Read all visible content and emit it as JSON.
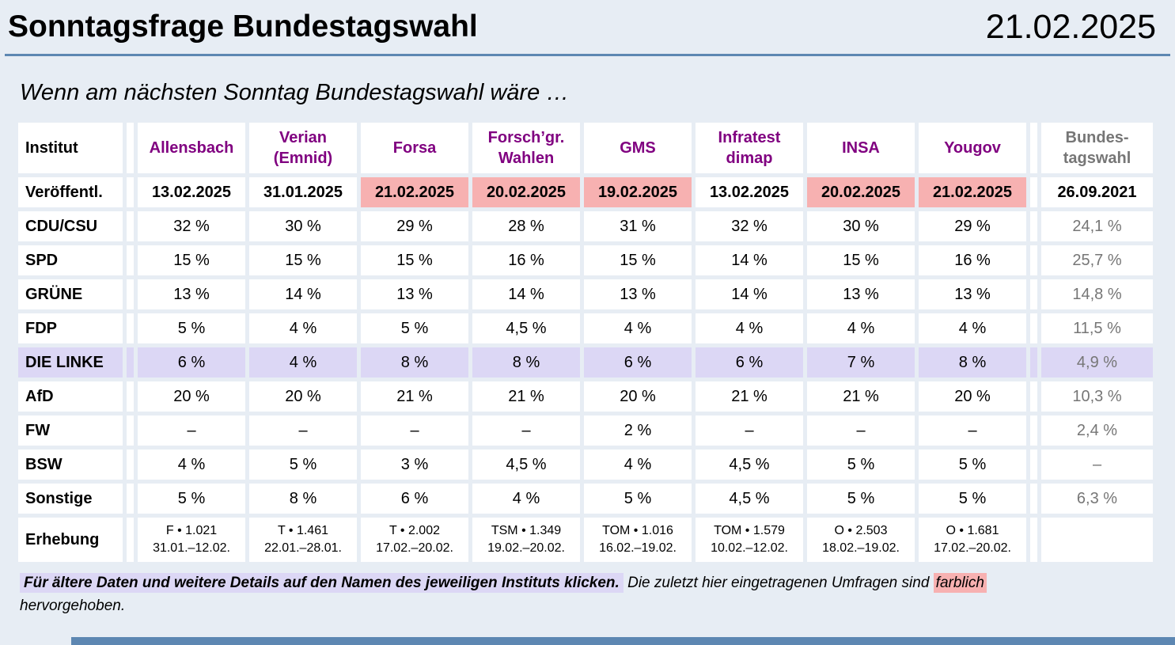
{
  "header": {
    "title": "Sonntagsfrage Bundestagswahl",
    "date": "21.02.2025",
    "subtitle": "Wenn am nächsten Sonntag Bundestagswahl wäre …"
  },
  "colors": {
    "page_bg": "#e7edf4",
    "rule_blue": "#5d87b2",
    "institute_purple": "#800080",
    "election_gray": "#767676",
    "highlight_pink": "#f7b1b1",
    "highlight_lavender": "#dcd7f5",
    "cell_white": "#ffffff",
    "text_black": "#000000"
  },
  "table": {
    "corner_label": "Institut",
    "published_label": "Veröffentl.",
    "survey_label": "Erhebung",
    "institutes": [
      {
        "name": "Allensbach",
        "published": "13.02.2025",
        "highlighted": false,
        "survey": "F • 1.021\n31.01.–12.02."
      },
      {
        "name": "Verian\n(Emnid)",
        "published": "31.01.2025",
        "highlighted": false,
        "survey": "T • 1.461\n22.01.–28.01."
      },
      {
        "name": "Forsa",
        "published": "21.02.2025",
        "highlighted": true,
        "survey": "T • 2.002\n17.02.–20.02."
      },
      {
        "name": "Forsch’gr.\nWahlen",
        "published": "20.02.2025",
        "highlighted": true,
        "survey": "TSM • 1.349\n19.02.–20.02."
      },
      {
        "name": "GMS",
        "published": "19.02.2025",
        "highlighted": true,
        "survey": "TOM • 1.016\n16.02.–19.02."
      },
      {
        "name": "Infratest\ndimap",
        "published": "13.02.2025",
        "highlighted": false,
        "survey": "TOM • 1.579\n10.02.–12.02."
      },
      {
        "name": "INSA",
        "published": "20.02.2025",
        "highlighted": true,
        "survey": "O • 2.503\n18.02.–19.02."
      },
      {
        "name": "Yougov",
        "published": "21.02.2025",
        "highlighted": true,
        "survey": "O • 1.681\n17.02.–20.02."
      }
    ],
    "last_col": {
      "name": "Bundes-\ntagswahl",
      "published": "26.09.2021"
    },
    "parties": [
      {
        "name": "CDU/CSU",
        "highlighted": false,
        "values": [
          "32 %",
          "30 %",
          "29 %",
          "28 %",
          "31 %",
          "32 %",
          "30 %",
          "29 %"
        ],
        "election": "24,1 %"
      },
      {
        "name": "SPD",
        "highlighted": false,
        "values": [
          "15 %",
          "15 %",
          "15 %",
          "16 %",
          "15 %",
          "14 %",
          "15 %",
          "16 %"
        ],
        "election": "25,7 %"
      },
      {
        "name": "GRÜNE",
        "highlighted": false,
        "values": [
          "13 %",
          "14 %",
          "13 %",
          "14 %",
          "13 %",
          "14 %",
          "13 %",
          "13 %"
        ],
        "election": "14,8 %"
      },
      {
        "name": "FDP",
        "highlighted": false,
        "values": [
          "5 %",
          "4 %",
          "5 %",
          "4,5 %",
          "4 %",
          "4 %",
          "4 %",
          "4 %"
        ],
        "election": "11,5 %"
      },
      {
        "name": "DIE LINKE",
        "highlighted": true,
        "values": [
          "6 %",
          "4 %",
          "8 %",
          "8 %",
          "6 %",
          "6 %",
          "7 %",
          "8 %"
        ],
        "election": "4,9 %"
      },
      {
        "name": "AfD",
        "highlighted": false,
        "values": [
          "20 %",
          "20 %",
          "21 %",
          "21 %",
          "20 %",
          "21 %",
          "21 %",
          "20 %"
        ],
        "election": "10,3 %"
      },
      {
        "name": "FW",
        "highlighted": false,
        "values": [
          "–",
          "–",
          "–",
          "–",
          "2 %",
          "–",
          "–",
          "–"
        ],
        "election": "2,4 %"
      },
      {
        "name": "BSW",
        "highlighted": false,
        "values": [
          "4 %",
          "5 %",
          "3 %",
          "4,5 %",
          "4 %",
          "4,5 %",
          "5 %",
          "5 %"
        ],
        "election": "–"
      },
      {
        "name": "Sonstige",
        "highlighted": false,
        "values": [
          "5 %",
          "8 %",
          "6 %",
          "4 %",
          "5 %",
          "4,5 %",
          "5 %",
          "5 %"
        ],
        "election": "6,3 %"
      }
    ]
  },
  "footer": {
    "click_note": "Für ältere Daten und weitere Details auf den Namen des jeweiligen Instituts klicken.",
    "recent_note": "Die zuletzt hier eingetragenen Umfragen sind",
    "highlighted_word": "farblich",
    "end_note": "hervorgehoben."
  }
}
